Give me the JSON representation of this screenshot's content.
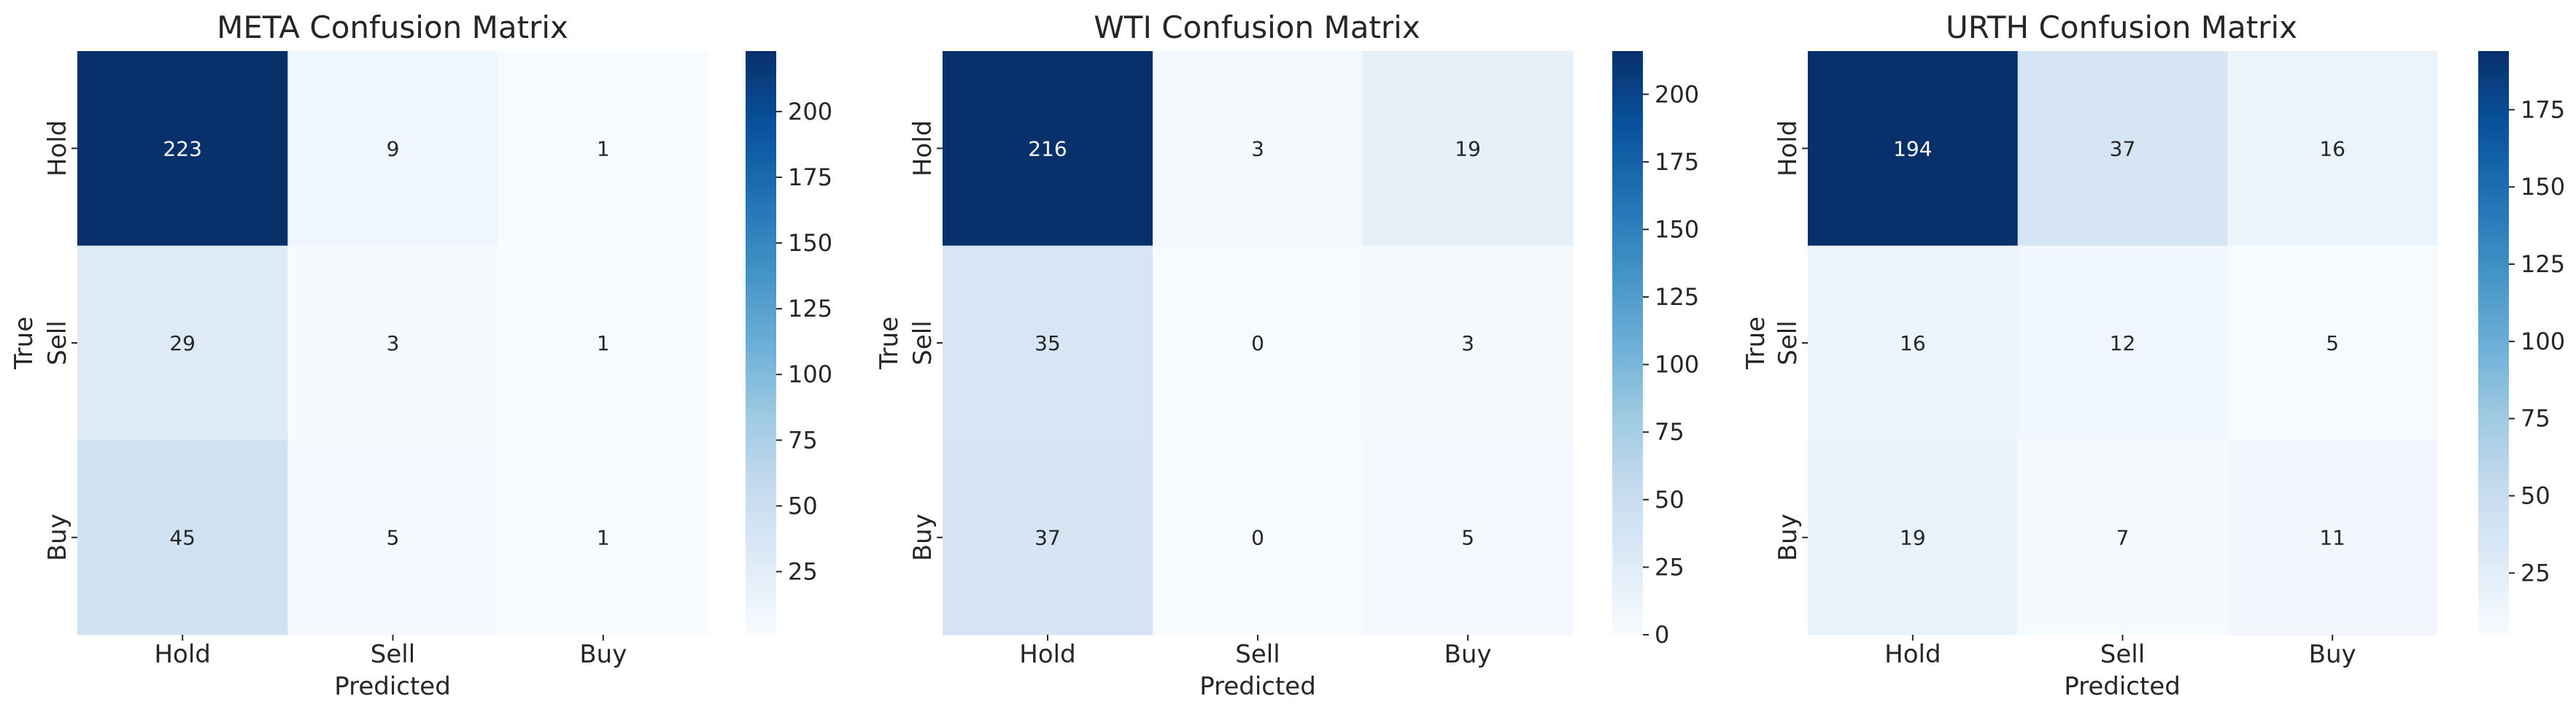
{
  "chart_data": [
    {
      "type": "heatmap",
      "title": "META Confusion Matrix",
      "xlabel": "Predicted",
      "ylabel": "True",
      "x_categories": [
        "Hold",
        "Sell",
        "Buy"
      ],
      "y_categories": [
        "Hold",
        "Sell",
        "Buy"
      ],
      "values": [
        [
          223,
          9,
          1
        ],
        [
          29,
          3,
          1
        ],
        [
          45,
          5,
          1
        ]
      ],
      "colorbar": {
        "min": 1,
        "max": 223,
        "ticks": [
          25,
          50,
          75,
          100,
          125,
          150,
          175,
          200
        ]
      },
      "colormap": "Blues"
    },
    {
      "type": "heatmap",
      "title": "WTI Confusion Matrix",
      "xlabel": "Predicted",
      "ylabel": "True",
      "x_categories": [
        "Hold",
        "Sell",
        "Buy"
      ],
      "y_categories": [
        "Hold",
        "Sell",
        "Buy"
      ],
      "values": [
        [
          216,
          3,
          19
        ],
        [
          35,
          0,
          3
        ],
        [
          37,
          0,
          5
        ]
      ],
      "colorbar": {
        "min": 0,
        "max": 216,
        "ticks": [
          0,
          25,
          50,
          75,
          100,
          125,
          150,
          175,
          200
        ]
      },
      "colormap": "Blues"
    },
    {
      "type": "heatmap",
      "title": "URTH Confusion Matrix",
      "xlabel": "Predicted",
      "ylabel": "True",
      "x_categories": [
        "Hold",
        "Sell",
        "Buy"
      ],
      "y_categories": [
        "Hold",
        "Sell",
        "Buy"
      ],
      "values": [
        [
          194,
          37,
          16
        ],
        [
          16,
          12,
          5
        ],
        [
          19,
          7,
          11
        ]
      ],
      "colorbar": {
        "min": 5,
        "max": 194,
        "ticks": [
          25,
          50,
          75,
          100,
          125,
          150,
          175
        ]
      },
      "colormap": "Blues"
    }
  ]
}
